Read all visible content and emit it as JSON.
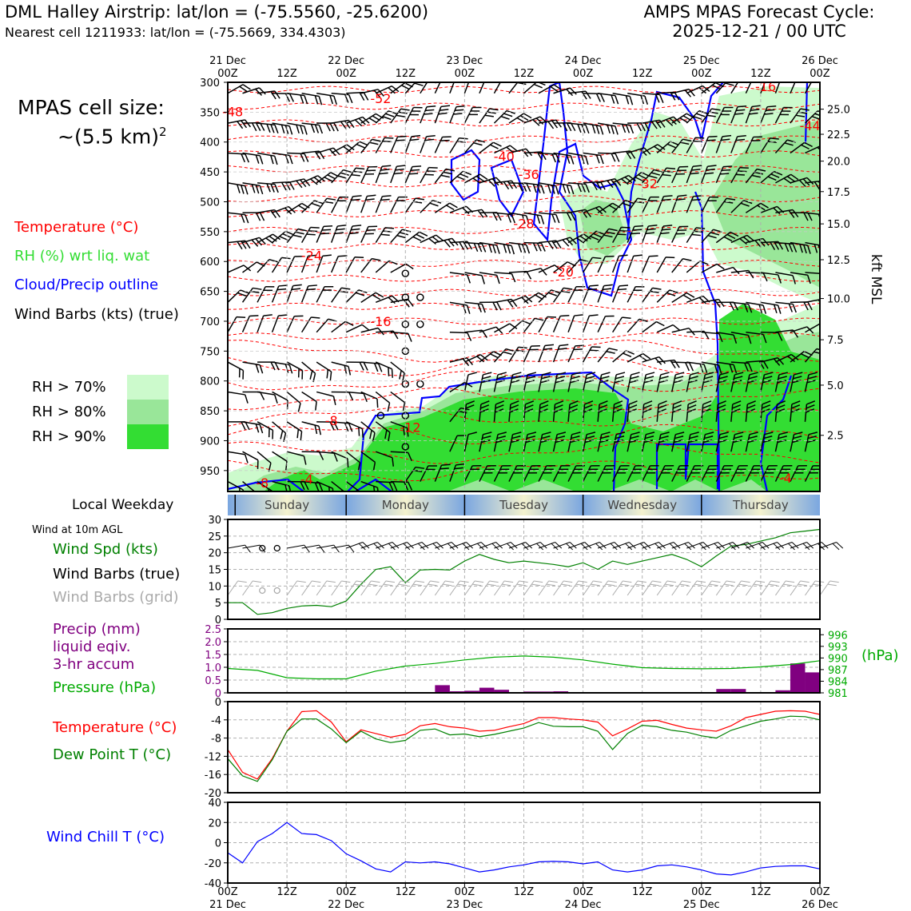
{
  "header": {
    "station_title": "DML Halley Airstrip: lat/lon = (-75.5560, -25.6200)",
    "nearest_cell": "Nearest cell 1211933: lat/lon = (-75.5669, 334.4303)",
    "forecast_line1": "AMPS MPAS Forecast Cycle:",
    "forecast_line2": "2025-12-21 / 00 UTC"
  },
  "cell_size": {
    "line1": "MPAS cell size:",
    "line2": "~(5.5 km)",
    "exp": "2"
  },
  "legend": {
    "temperature": "Temperature (°C)",
    "rh": "RH (%) wrt liq. wat",
    "cloud": "Cloud/Precip outline",
    "barbs": "Wind Barbs (kts) (true)",
    "rh70": "RH > 70%",
    "rh80": "RH > 80%",
    "rh90": "RH > 90%"
  },
  "colors": {
    "temperature": "#ff0000",
    "rh": "#33dd33",
    "cloud": "#0000ff",
    "rh70": "#ccfacc",
    "rh80": "#99e699",
    "rh90": "#33dd33",
    "pressure": "#00aa00",
    "precip": "#800080",
    "dewpoint": "#008000",
    "windchill": "#0000ff",
    "gridbarbs": "#aaaaaa"
  },
  "time_axis": {
    "top_dates": [
      "21 Dec",
      "",
      "22 Dec",
      "",
      "23 Dec",
      "",
      "24 Dec",
      "",
      "25 Dec",
      "",
      "26 Dec"
    ],
    "hours": [
      "00Z",
      "12Z",
      "00Z",
      "12Z",
      "00Z",
      "12Z",
      "00Z",
      "12Z",
      "00Z",
      "12Z",
      "00Z"
    ]
  },
  "weekday": {
    "title": "Local Weekday",
    "days": [
      "Sunday",
      "Monday",
      "Tuesday",
      "Wednesday",
      "Thursday"
    ]
  },
  "wind_panel": {
    "title": "Wind at 10m AGL",
    "spd_label": "Wind Spd (kts)",
    "true_label": "Wind Barbs (true)",
    "grid_label": "Wind Barbs (grid)"
  },
  "precip_panel": {
    "line1": "Precip (mm)",
    "line2": "liquid eqiv.",
    "line3": "3-hr accum",
    "pressure_label": "Pressure (hPa)",
    "unit": "(hPa)"
  },
  "temp_panel": {
    "temp_label": "Temperature (°C)",
    "dew_label": "Dew Point T (°C)"
  },
  "chill_panel": {
    "label": "Wind Chill T (°C)"
  },
  "profile_axes": {
    "kft_label": "kft MSL"
  },
  "chart_data": [
    {
      "type": "heatmap",
      "name": "vertical profile",
      "x_hours": [
        0,
        120
      ],
      "y_pressure_ticks": [
        300,
        350,
        400,
        450,
        500,
        550,
        600,
        650,
        700,
        750,
        800,
        850,
        900,
        950
      ],
      "ylim": [
        300,
        985
      ],
      "right_kft_ticks": [
        {
          "label": "25.0",
          "p": 345
        },
        {
          "label": "22.5",
          "p": 387
        },
        {
          "label": "20.0",
          "p": 432
        },
        {
          "label": "17.5",
          "p": 483
        },
        {
          "label": "15.0",
          "p": 537
        },
        {
          "label": "12.5",
          "p": 597
        },
        {
          "label": "10.0",
          "p": 662
        },
        {
          "label": "7.5",
          "p": 731
        },
        {
          "label": "5.0",
          "p": 807
        },
        {
          "label": "2.5",
          "p": 891
        }
      ],
      "temperature_contour_labels": [
        {
          "text": "-52",
          "h": 31,
          "p": 335
        },
        {
          "text": "-48",
          "h": 1,
          "p": 357
        },
        {
          "text": "-44",
          "h": 118,
          "p": 380
        },
        {
          "text": "-40",
          "h": 56,
          "p": 432
        },
        {
          "text": "-36",
          "h": 61,
          "p": 462
        },
        {
          "text": "-32",
          "h": 85,
          "p": 477
        },
        {
          "text": "-28",
          "h": 60,
          "p": 544
        },
        {
          "text": "-24",
          "h": 17,
          "p": 598
        },
        {
          "text": "-20",
          "h": 68,
          "p": 625
        },
        {
          "text": "-16",
          "h": 31,
          "p": 708
        },
        {
          "text": "-12",
          "h": 37,
          "p": 885
        },
        {
          "text": "-8",
          "h": 21,
          "p": 874
        },
        {
          "text": "-8",
          "h": 7,
          "p": 978
        },
        {
          "text": "-4",
          "h": 16,
          "p": 972
        },
        {
          "text": "-4",
          "h": 113,
          "p": 970
        },
        {
          "text": "-16",
          "h": 109,
          "p": 315
        }
      ]
    },
    {
      "type": "line",
      "name": "wind speed 10m",
      "ylim": [
        0,
        30
      ],
      "yticks": [
        0,
        5,
        10,
        15,
        20,
        25,
        30
      ],
      "x_hours": [
        0,
        3,
        6,
        9,
        12,
        15,
        18,
        21,
        24,
        27,
        30,
        33,
        36,
        39,
        42,
        45,
        48,
        51,
        54,
        57,
        60,
        63,
        66,
        69,
        72,
        75,
        78,
        81,
        84,
        87,
        90,
        93,
        96,
        99,
        102,
        105,
        108,
        111,
        114,
        117,
        120
      ],
      "series": [
        {
          "values": [
            5,
            5,
            1.5,
            2,
            3.3,
            4,
            4.2,
            3.8,
            5.5,
            10.5,
            15,
            15.8,
            11,
            14.8,
            15,
            14.8,
            17.5,
            19.5,
            18,
            17,
            17.5,
            17,
            16.5,
            15.8,
            17,
            15,
            17.5,
            16.5,
            17.5,
            18.5,
            19.5,
            18,
            15.8,
            19,
            22,
            22.5,
            23.5,
            24.5,
            26,
            26.5,
            27
          ]
        }
      ]
    },
    {
      "type": "bar",
      "name": "precip and pressure",
      "ylim_precip": [
        0,
        2.5
      ],
      "yticks_precip": [
        0,
        0.5,
        1.0,
        1.5,
        2.0,
        2.5
      ],
      "ytick_labels_precip": [
        "0",
        "0.5",
        "1.0",
        "1.5",
        "2.0",
        "2.5"
      ],
      "yticks_pressure": [
        981,
        984,
        987,
        990,
        993,
        996
      ],
      "ylim_pressure": [
        981,
        997.5
      ],
      "precip_x_hours": [
        43.5,
        46.5,
        49.5,
        52.5,
        55.5,
        58.5,
        61.5,
        64.5,
        67.5,
        100.5,
        103.5,
        112.5,
        115.5,
        118.5
      ],
      "precip_values": [
        0.3,
        0.06,
        0.08,
        0.2,
        0.12,
        0.03,
        0.05,
        0.05,
        0.06,
        0.15,
        0.15,
        0.1,
        1.15,
        0.8
      ],
      "pressure_x_hours": [
        0,
        6,
        12,
        18,
        24,
        30,
        36,
        42,
        48,
        54,
        60,
        66,
        72,
        78,
        84,
        90,
        96,
        102,
        108,
        114,
        120
      ],
      "pressure_values": [
        987.3,
        986.8,
        984.9,
        984.6,
        984.6,
        986.6,
        987.9,
        988.6,
        989.5,
        990.2,
        990.5,
        990.2,
        989.5,
        988.4,
        987.5,
        987.3,
        987.2,
        987.3,
        987.7,
        988.3,
        989.3
      ]
    },
    {
      "type": "line",
      "name": "temperature dewpoint",
      "ylim": [
        -20,
        0
      ],
      "yticks": [
        0,
        -4,
        -8,
        -12,
        -16,
        -20
      ],
      "x_hours": [
        0,
        3,
        6,
        9,
        12,
        15,
        18,
        21,
        24,
        27,
        30,
        33,
        36,
        39,
        42,
        45,
        48,
        51,
        54,
        57,
        60,
        63,
        66,
        69,
        72,
        75,
        78,
        81,
        84,
        87,
        90,
        93,
        96,
        99,
        102,
        105,
        108,
        111,
        114,
        117,
        120
      ],
      "series": [
        {
          "name": "Temperature",
          "values": [
            -10.5,
            -15.5,
            -17,
            -12.5,
            -6.5,
            -2.2,
            -2,
            -4.5,
            -8.8,
            -6.2,
            -7,
            -7.8,
            -7.2,
            -5.3,
            -4.8,
            -5.5,
            -5.8,
            -6.5,
            -6.3,
            -5.5,
            -4.8,
            -3.5,
            -3.5,
            -3.8,
            -4,
            -4.5,
            -7.5,
            -6,
            -4.3,
            -4.1,
            -5,
            -5.8,
            -6.2,
            -6.5,
            -5.3,
            -3.5,
            -2.8,
            -2.1,
            -2,
            -2.1,
            -2.8
          ]
        },
        {
          "name": "Dew Point",
          "values": [
            -12.5,
            -16.3,
            -17.5,
            -12.8,
            -6.5,
            -3.8,
            -3.8,
            -6,
            -9,
            -6.5,
            -8.2,
            -9,
            -8.5,
            -6.3,
            -6,
            -7.3,
            -7.1,
            -7.7,
            -7.2,
            -6.5,
            -5.8,
            -4.6,
            -5.4,
            -5.5,
            -5.5,
            -6.5,
            -10.5,
            -7,
            -5.2,
            -5.5,
            -6.3,
            -6.7,
            -7.5,
            -8,
            -6.3,
            -5.3,
            -4.3,
            -3.8,
            -3.2,
            -3.3,
            -4
          ]
        }
      ]
    },
    {
      "type": "line",
      "name": "wind chill",
      "ylim": [
        -40,
        40
      ],
      "yticks": [
        40,
        20,
        0,
        -20,
        -40
      ],
      "x_hours": [
        0,
        3,
        6,
        9,
        12,
        15,
        18,
        21,
        24,
        27,
        30,
        33,
        36,
        39,
        42,
        45,
        48,
        51,
        54,
        57,
        60,
        63,
        66,
        69,
        72,
        75,
        78,
        81,
        84,
        87,
        90,
        93,
        96,
        99,
        102,
        105,
        108,
        111,
        114,
        117,
        120
      ],
      "series": [
        {
          "values": [
            -10,
            -20,
            1,
            9,
            20,
            9,
            8,
            2,
            -11,
            -18,
            -26,
            -29,
            -19,
            -20,
            -19,
            -21,
            -25,
            -29,
            -27,
            -24,
            -22,
            -19,
            -18.5,
            -19,
            -21,
            -19,
            -27,
            -29,
            -27,
            -23,
            -22,
            -24,
            -27,
            -31,
            -32,
            -29,
            -25,
            -23.5,
            -23,
            -23,
            -26
          ]
        }
      ]
    }
  ]
}
